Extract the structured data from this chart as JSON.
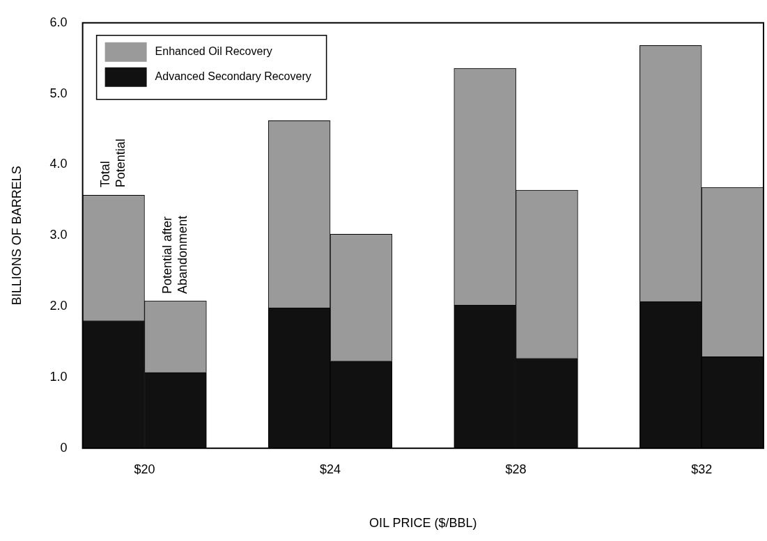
{
  "chart_data": {
    "type": "bar",
    "stacked": true,
    "xlabel": "OIL PRICE ($/BBL)",
    "ylabel": "BILLIONS OF BARRELS",
    "categories": [
      "$20",
      null,
      null,
      "$24",
      null,
      null,
      "$28",
      null,
      null,
      "$32",
      null
    ],
    "series": [
      {
        "name": "Advanced Secondary Recovery",
        "color": "#111111",
        "values": [
          1.8,
          1.07,
          null,
          1.98,
          1.23,
          null,
          2.02,
          1.27,
          null,
          2.07,
          1.29
        ]
      },
      {
        "name": "Enhanced Oil Recovery",
        "color": "#9a9a9a",
        "values": [
          1.77,
          1.01,
          null,
          2.64,
          1.79,
          null,
          3.34,
          2.37,
          null,
          3.61,
          2.39
        ]
      }
    ],
    "ylim": [
      0,
      6
    ],
    "yticks": [
      0,
      {
        "value": 1,
        "label": "1.0"
      },
      {
        "value": 2,
        "label": "2.0"
      },
      {
        "value": 3,
        "label": "3.0"
      },
      {
        "value": 4,
        "label": "4.0"
      },
      {
        "value": 5,
        "label": "5.0"
      },
      {
        "value": 6,
        "label": "6.0"
      }
    ],
    "grid": false,
    "legend": "top left",
    "annotations": [
      {
        "text": "Total Potential",
        "x": "$20",
        "y": 3.6
      },
      {
        "text": "Potential after Abandonment",
        "y": 2.1
      }
    ]
  }
}
